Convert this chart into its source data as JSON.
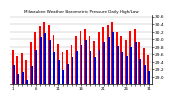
{
  "title": "Milwaukee Weather Barometric Pressure Daily High/Low",
  "highs": [
    29.72,
    29.55,
    29.62,
    29.45,
    29.92,
    30.18,
    30.35,
    30.45,
    30.38,
    30.12,
    29.88,
    29.65,
    29.72,
    29.85,
    30.08,
    30.22,
    30.28,
    30.08,
    29.95,
    30.18,
    30.32,
    30.38,
    30.45,
    30.18,
    30.08,
    29.98,
    30.22,
    30.28,
    29.92,
    29.75,
    29.58
  ],
  "lows": [
    29.32,
    29.08,
    29.12,
    28.92,
    29.28,
    29.72,
    30.05,
    30.15,
    29.98,
    29.65,
    29.45,
    29.18,
    29.35,
    29.52,
    29.68,
    29.85,
    29.98,
    29.68,
    29.52,
    29.72,
    29.92,
    30.05,
    30.18,
    29.82,
    29.65,
    29.55,
    29.78,
    29.92,
    29.48,
    29.32,
    29.15
  ],
  "high_color": "#ff0000",
  "low_color": "#0000cc",
  "background_color": "#ffffff",
  "ylim_min": 28.8,
  "ylim_max": 30.65,
  "ytick_labels": [
    "29.0",
    "29.2",
    "29.4",
    "29.6",
    "29.8",
    "30.0",
    "30.2",
    "30.4",
    "30.6"
  ],
  "ytick_vals": [
    29.0,
    29.2,
    29.4,
    29.6,
    29.8,
    30.0,
    30.2,
    30.4,
    30.6
  ],
  "bar_width": 0.42
}
